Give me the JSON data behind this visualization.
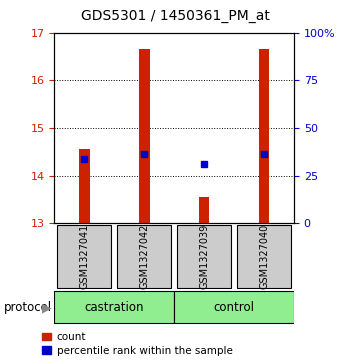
{
  "title": "GDS5301 / 1450361_PM_at",
  "samples": [
    "GSM1327041",
    "GSM1327042",
    "GSM1327039",
    "GSM1327040"
  ],
  "red_bar_bottoms": [
    13.0,
    13.0,
    13.0,
    13.0
  ],
  "red_bar_tops": [
    14.55,
    16.65,
    13.55,
    16.65
  ],
  "blue_dot_values": [
    14.35,
    14.45,
    14.25,
    14.45
  ],
  "ylim_left": [
    13,
    17
  ],
  "ylim_right": [
    0,
    100
  ],
  "yticks_left": [
    13,
    14,
    15,
    16,
    17
  ],
  "yticks_right": [
    0,
    25,
    50,
    75,
    100
  ],
  "ytick_labels_right": [
    "0",
    "25",
    "50",
    "75",
    "100%"
  ],
  "left_axis_color": "#cc2200",
  "right_axis_color": "#0000cc",
  "bar_color": "#cc2200",
  "dot_color": "#0000cc",
  "bar_width": 0.18,
  "bg_color": "#ffffff",
  "legend_red_label": "count",
  "legend_blue_label": "percentile rank within the sample",
  "protocol_label": "protocol",
  "group_label_castration": "castration",
  "group_label_control": "control",
  "sample_box_color": "#cccccc",
  "group_box_color": "#90EE90",
  "title_fontsize": 10,
  "tick_fontsize": 8,
  "legend_fontsize": 7.5,
  "sample_fontsize": 7,
  "group_fontsize": 8.5
}
